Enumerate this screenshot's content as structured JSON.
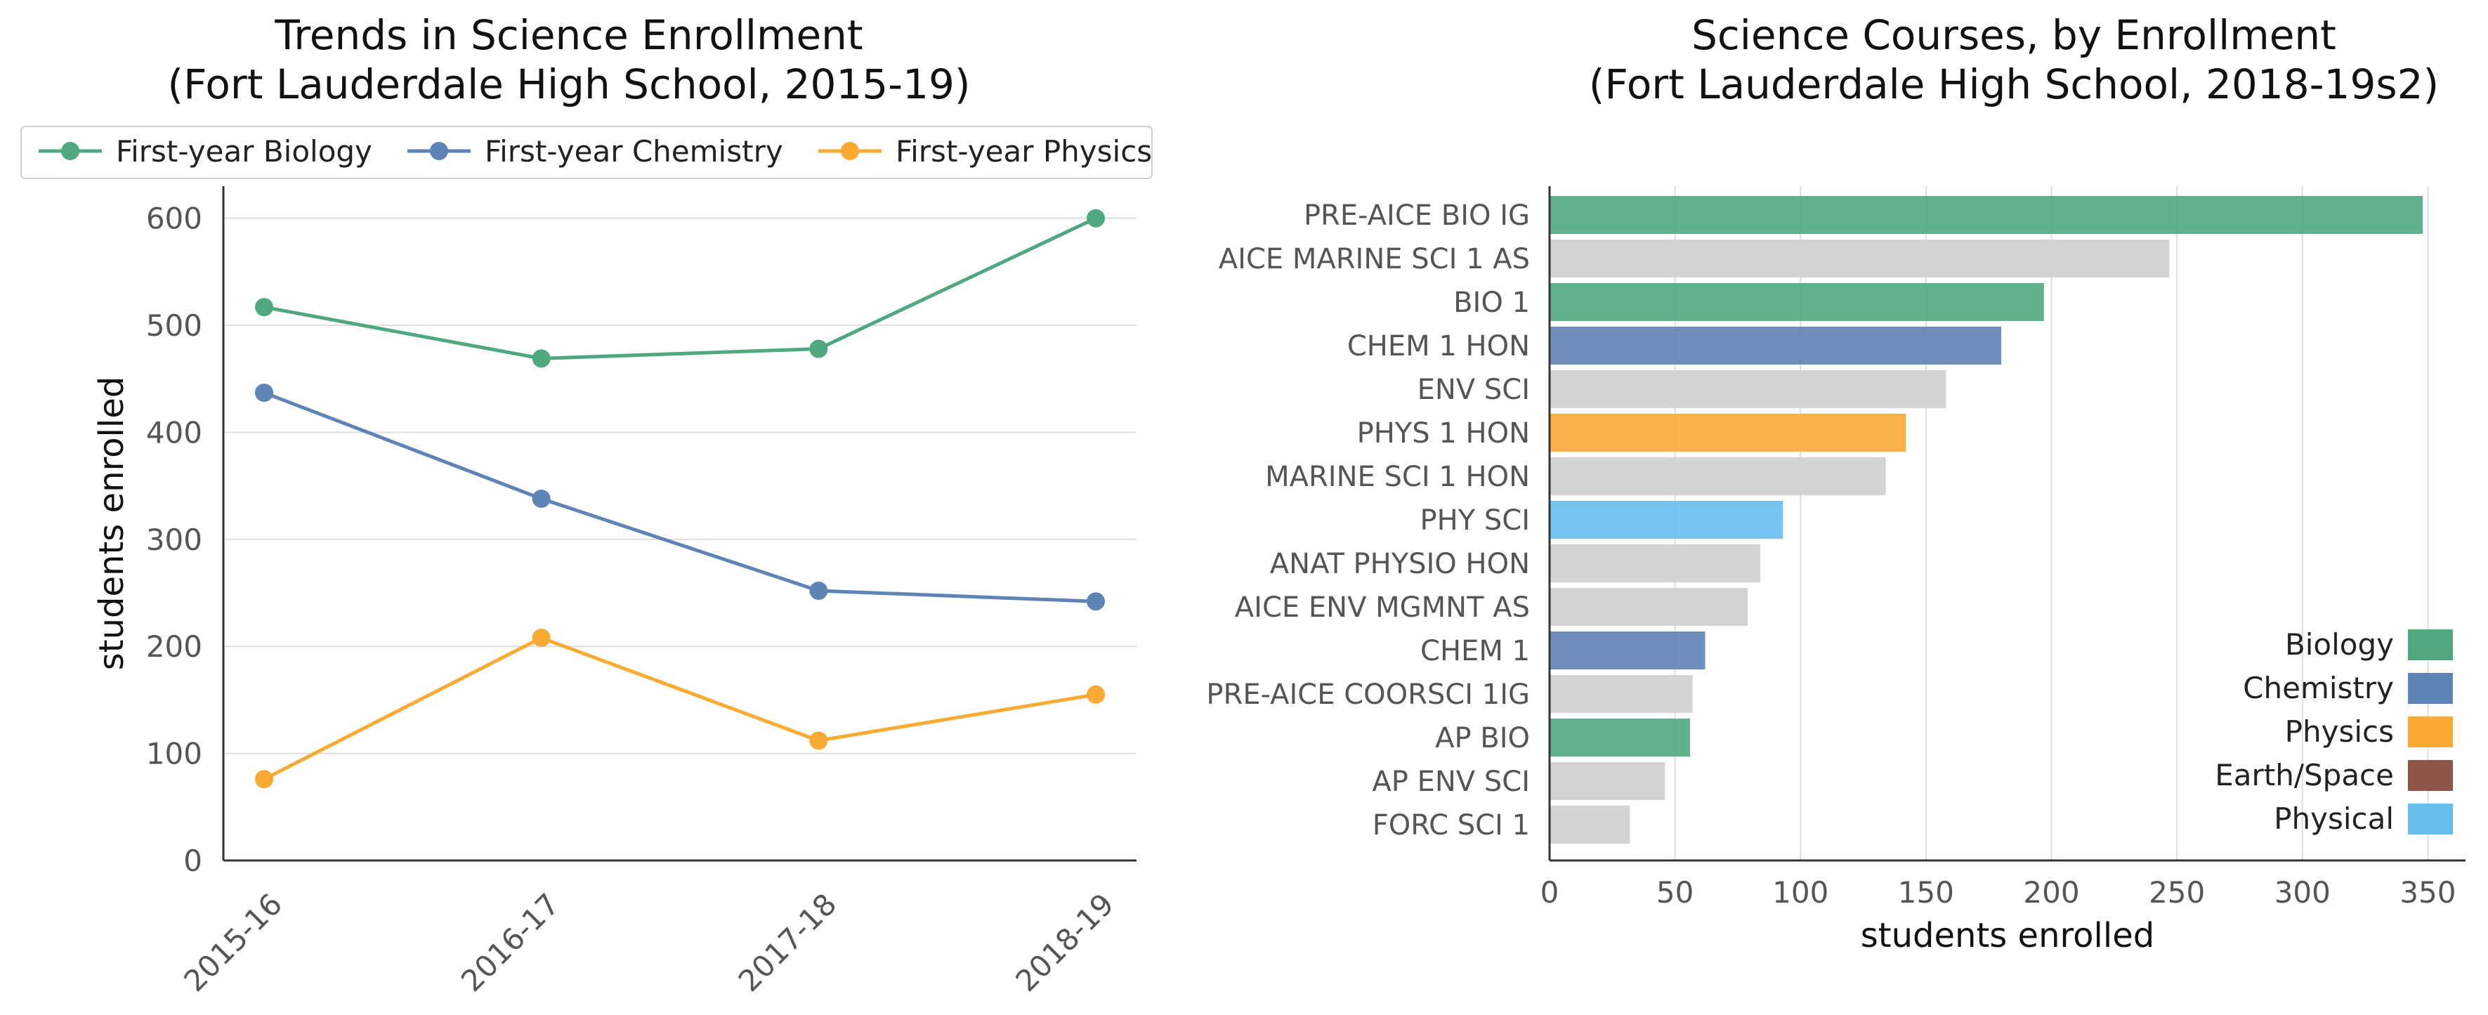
{
  "chart_data": [
    {
      "type": "line",
      "title": "Trends in Science Enrollment",
      "subtitle": "(Fort Lauderdale High School, 2015-19)",
      "xlabel": "",
      "ylabel": "students enrolled",
      "categories": [
        "2015-16",
        "2016-17",
        "2017-18",
        "2018-19"
      ],
      "ylim": [
        0,
        630
      ],
      "yticks": [
        0,
        100,
        200,
        300,
        400,
        500,
        600
      ],
      "grid": "horizontal",
      "legend_position": "top",
      "series": [
        {
          "name": "First-year Biology",
          "color": "#4fa87f",
          "values": [
            517,
            469,
            478,
            600
          ]
        },
        {
          "name": "First-year Chemistry",
          "color": "#5e83b5",
          "values": [
            437,
            338,
            252,
            242
          ]
        },
        {
          "name": "First-year Physics",
          "color": "#f8aa33",
          "values": [
            76,
            208,
            112,
            155
          ]
        }
      ]
    },
    {
      "type": "bar",
      "orientation": "horizontal",
      "title": "Science Courses, by Enrollment",
      "subtitle": "(Fort Lauderdale High School, 2018-19s2)",
      "xlabel": "students enrolled",
      "ylabel": "",
      "xlim": [
        0,
        365
      ],
      "xticks": [
        0,
        50,
        100,
        150,
        200,
        250,
        300,
        350
      ],
      "grid": "vertical",
      "legend_position": "lower-right",
      "categories": [
        "PRE-AICE BIO IG",
        "AICE MARINE SCI 1 AS",
        "BIO 1",
        "CHEM 1 HON",
        "ENV SCI",
        "PHYS 1 HON",
        "MARINE SCI 1 HON",
        "PHY SCI",
        "ANAT PHYSIO HON",
        "AICE ENV MGMNT AS",
        "CHEM 1",
        "PRE-AICE COORSCI 1IG",
        "AP BIO",
        "AP ENV SCI",
        "FORC SCI 1"
      ],
      "values": [
        348,
        247,
        197,
        180,
        158,
        142,
        134,
        93,
        84,
        79,
        62,
        57,
        56,
        46,
        32
      ],
      "bar_groups": [
        "Biology",
        "Other",
        "Biology",
        "Chemistry",
        "Other",
        "Physics",
        "Other",
        "Physical",
        "Other",
        "Other",
        "Chemistry",
        "Other",
        "Biology",
        "Other",
        "Other"
      ],
      "group_colors": {
        "Biology": "#4fa87f",
        "Chemistry": "#5e83b5",
        "Physics": "#f8aa33",
        "Earth/Space": "#8c5648",
        "Physical": "#66bdee",
        "Other": "#d4d4d4"
      },
      "legend": [
        "Biology",
        "Chemistry",
        "Physics",
        "Earth/Space",
        "Physical"
      ]
    }
  ]
}
